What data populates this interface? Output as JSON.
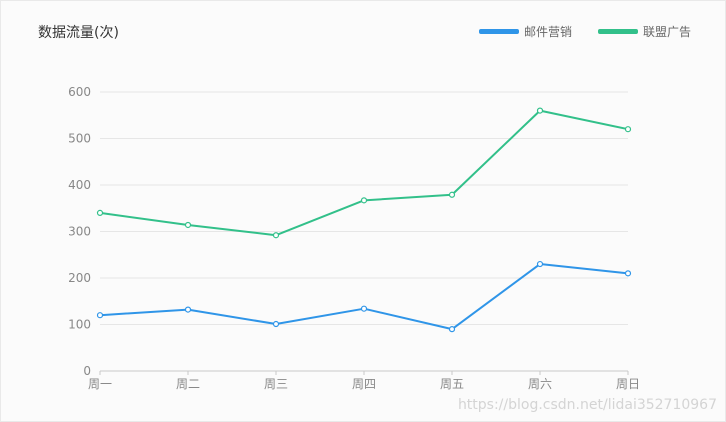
{
  "chart_data": {
    "type": "line",
    "title": "数据流量(次)",
    "categories": [
      "周一",
      "周二",
      "周三",
      "周四",
      "周五",
      "周六",
      "周日"
    ],
    "series": [
      {
        "name": "邮件营销",
        "color": "#2f95e8",
        "values": [
          120,
          132,
          101,
          134,
          90,
          230,
          210
        ]
      },
      {
        "name": "联盟广告",
        "color": "#32c08a",
        "values": [
          340,
          314,
          292,
          367,
          379,
          560,
          520
        ]
      }
    ],
    "ylim": [
      0,
      600
    ],
    "yticks": [
      0,
      100,
      200,
      300,
      400,
      500,
      600
    ],
    "grid": true,
    "legend": "top-right"
  },
  "watermark": "https://blog.csdn.net/lidai352710967"
}
